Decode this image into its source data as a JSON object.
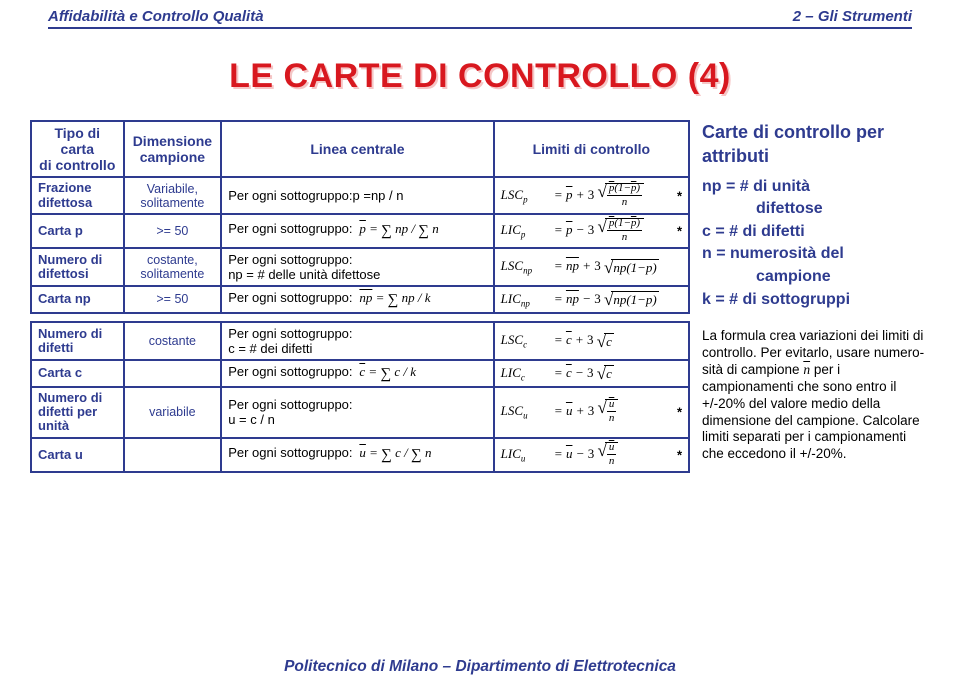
{
  "header": {
    "left": "Affidabilità e Controllo Qualità",
    "right": "2 – Gli Strumenti"
  },
  "title": "LE CARTE DI CONTROLLO (4)",
  "table_headers": {
    "col1": "Tipo di carta\ndi controllo",
    "col2": "Dimensione\ncampione",
    "col3": "Linea centrale",
    "col4": "Limiti di controllo"
  },
  "table1": {
    "r1": {
      "type_a": "Frazione",
      "type_b": "difettosa",
      "dim": "Variabile,",
      "dim2": "solitamente",
      "line": "Per ogni sottogruppo:p =np / n"
    },
    "r2": {
      "type": "Carta p",
      "dim": ">= 50",
      "line_prefix": "Per ogni sottogruppo:"
    },
    "r3": {
      "type_a": "Numero di",
      "type_b": "difettosi",
      "dim": "costante,",
      "dim2": "solitamente",
      "line_a": "Per ogni sottogruppo:",
      "line_b": "np = # delle unità difettose"
    },
    "r4": {
      "type": "Carta np",
      "dim": ">= 50",
      "line_prefix": "Per ogni sottogruppo:"
    }
  },
  "table2": {
    "r1": {
      "type_a": "Numero di",
      "type_b": "difetti",
      "dim": "costante",
      "line_a": "Per ogni sottogruppo:",
      "line_b": "c = # dei difetti"
    },
    "r2": {
      "type": "Carta c",
      "line_prefix": "Per ogni sottogruppo:"
    },
    "r3": {
      "type_a": "Numero di",
      "type_b": "difetti per",
      "type_c": "unità",
      "dim": "variabile",
      "line_a": "Per ogni sottogruppo:",
      "line_b": "u = c / n"
    },
    "r4": {
      "type": "Carta u",
      "line_prefix": "Per ogni sottogruppo:"
    }
  },
  "notes": {
    "heading": "Carte di controllo per attributi",
    "l1a": "np = # di unità",
    "l1b": "difettose",
    "l2": "c = # di difetti",
    "l3a": "n = numerosità del",
    "l3b": "campione",
    "l4": "k = # di sottogruppi",
    "para": "La formula crea variazioni dei limiti di controllo. Per evitarlo, usare numero­sità di campione n̄ per i campionamenti che sono entro il +/-20% del valore medio della dimensione del campione. Calcolare limiti separati per i cam­pionamenti che eccedono il +/-20%."
  },
  "footer": "Politecnico di Milano – Dipartimento di Elettrotecnica",
  "colors": {
    "brand": "#2e3b8f",
    "title": "#d8181f",
    "bg": "#ffffff"
  }
}
